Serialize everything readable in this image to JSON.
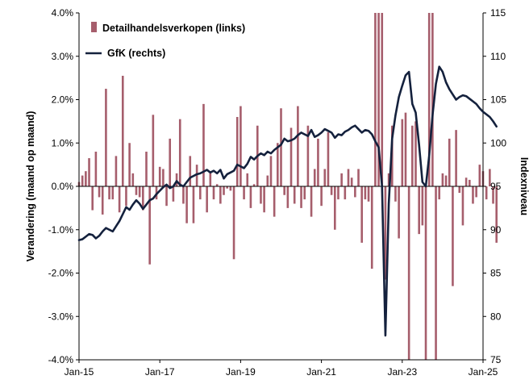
{
  "chart_data": {
    "type": "bar+line",
    "title": "",
    "x_tick_labels": [
      "Jan-15",
      "Jan-17",
      "Jan-19",
      "Jan-21",
      "Jan-23",
      "Jan-25"
    ],
    "x_range": [
      "2015-01",
      "2025-01"
    ],
    "left_axis": {
      "label": "Verandering (maand op maand)",
      "ylim": [
        -4.0,
        4.0
      ],
      "tick_labels": [
        "4.0%",
        "3.0%",
        "2.0%",
        "1.0%",
        "0.0%",
        "-1.0%",
        "-2.0%",
        "-3.0%",
        "-4.0%"
      ]
    },
    "right_axis": {
      "label": "Indexniveau",
      "ylim": [
        75,
        115
      ],
      "tick_labels": [
        "115",
        "110",
        "105",
        "100",
        "95",
        "90",
        "85",
        "80",
        "75"
      ]
    },
    "legend": {
      "placement": "top-left"
    },
    "colors": {
      "bars": "#a65e6c",
      "line": "#14213d"
    },
    "series": [
      {
        "name": "Detailhandelsverkopen (links)",
        "type": "bar",
        "axis": "left",
        "start": "2015-01",
        "frequency": "monthly",
        "unit": "%",
        "values": [
          0.1,
          0.25,
          0.35,
          0.65,
          -0.55,
          0.8,
          -0.25,
          -0.65,
          2.25,
          -0.3,
          -0.3,
          0.7,
          -0.6,
          2.55,
          -0.45,
          1.0,
          0.3,
          -0.2,
          -0.25,
          -0.55,
          0.8,
          -1.8,
          1.65,
          -0.3,
          0.45,
          0.4,
          -0.45,
          1.1,
          -0.35,
          0.3,
          1.55,
          -0.4,
          -0.85,
          0.7,
          -0.85,
          0.5,
          -0.3,
          1.9,
          -0.6,
          0.3,
          -0.3,
          0.05,
          -0.4,
          -0.2,
          -0.05,
          -0.1,
          -1.68,
          1.6,
          1.85,
          -0.3,
          0.3,
          -0.5,
          0.05,
          1.4,
          -0.4,
          -0.6,
          0.25,
          0.7,
          -0.7,
          1.0,
          1.8,
          -0.2,
          -0.5,
          1.35,
          -0.4,
          1.85,
          -0.5,
          -0.3,
          1.4,
          -0.7,
          0.4,
          1.1,
          -0.45,
          0.4,
          1.25,
          -0.2,
          -1.0,
          -0.3,
          0.3,
          -0.3,
          0.4,
          0.2,
          -0.25,
          0.4,
          -1.3,
          -0.3,
          -0.35,
          -1.9,
          4.0,
          4.0,
          4.0,
          -2.15,
          0.3,
          1.4,
          -0.35,
          -1.2,
          1.55,
          1.7,
          -4.0,
          1.4,
          1.5,
          -1.1,
          -0.9,
          -4.0,
          4.0,
          4.0,
          -4.0,
          -0.3,
          0.3,
          0.25,
          1.1,
          -2.3,
          1.3,
          -0.15,
          -0.9,
          0.2,
          0.15,
          -0.4,
          -0.25,
          0.5,
          0.35,
          -0.3,
          0.4,
          -0.4,
          -1.3
        ]
      },
      {
        "name": "GfK (rechts)",
        "type": "line",
        "axis": "right",
        "start": "2015-01",
        "frequency": "monthly",
        "unit": "index",
        "values": [
          88.8,
          88.9,
          89.2,
          89.5,
          89.4,
          89.0,
          89.3,
          89.8,
          90.2,
          90.0,
          89.8,
          90.4,
          91.0,
          91.8,
          92.6,
          92.3,
          92.9,
          93.4,
          93.0,
          92.4,
          92.9,
          93.4,
          93.6,
          94.1,
          94.5,
          94.9,
          95.2,
          94.8,
          95.0,
          95.6,
          95.2,
          95.0,
          95.5,
          96.0,
          96.2,
          96.4,
          96.5,
          96.7,
          96.9,
          96.6,
          96.8,
          96.5,
          96.9,
          95.9,
          96.4,
          96.6,
          96.8,
          97.5,
          97.3,
          97.1,
          97.6,
          98.4,
          98.1,
          98.5,
          98.8,
          98.6,
          99.0,
          98.8,
          99.2,
          99.5,
          99.8,
          100.5,
          100.2,
          100.3,
          100.5,
          100.9,
          101.2,
          101.0,
          100.8,
          101.5,
          100.7,
          100.9,
          101.2,
          101.6,
          101.4,
          101.2,
          100.6,
          101.0,
          100.9,
          101.3,
          101.5,
          101.8,
          102.0,
          101.6,
          101.2,
          101.5,
          101.4,
          101.0,
          100.2,
          99.5,
          95.0,
          77.8,
          93.0,
          100.5,
          103.2,
          105.3,
          106.6,
          107.8,
          108.2,
          104.5,
          103.5,
          99.8,
          95.5,
          95.0,
          98.5,
          103.2,
          106.8,
          108.8,
          108.2,
          107.0,
          106.2,
          105.6,
          105.0,
          105.3,
          105.5,
          105.4,
          105.1,
          104.8,
          104.5,
          104.0,
          103.6,
          103.3,
          103.0,
          102.5,
          101.9
        ]
      }
    ]
  }
}
